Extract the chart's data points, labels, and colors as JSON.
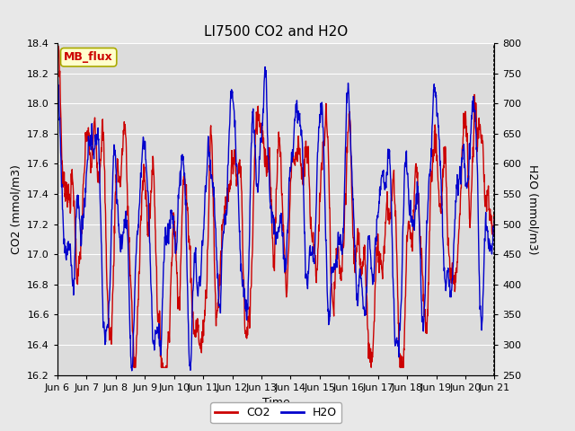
{
  "title": "LI7500 CO2 and H2O",
  "xlabel": "Time",
  "ylabel_left": "CO2 (mmol/m3)",
  "ylabel_right": "H2O (mmol/m3)",
  "co2_ylim": [
    16.2,
    18.4
  ],
  "h2o_ylim": [
    250,
    800
  ],
  "co2_yticks": [
    16.2,
    16.4,
    16.6,
    16.8,
    17.0,
    17.2,
    17.4,
    17.6,
    17.8,
    18.0,
    18.2,
    18.4
  ],
  "h2o_yticks": [
    250,
    300,
    350,
    400,
    450,
    500,
    550,
    600,
    650,
    700,
    750,
    800
  ],
  "xtick_labels": [
    "Jun 6",
    "Jun 7",
    "Jun 8",
    "Jun 9",
    "Jun 10",
    "Jun 11",
    "Jun 12",
    "Jun 13",
    "Jun 14",
    "Jun 15",
    "Jun 16",
    "Jun 17",
    "Jun 18",
    "Jun 19",
    "Jun 20",
    "Jun 21"
  ],
  "co2_color": "#cc0000",
  "h2o_color": "#0000cc",
  "bg_color": "#e8e8e8",
  "plot_bg": "#dcdcdc",
  "watermark_text": "MB_flux",
  "watermark_fg": "#cc0000",
  "watermark_bg": "#ffffcc",
  "legend_co2": "CO2",
  "legend_h2o": "H2O",
  "linewidth": 1.0,
  "num_points": 1500
}
